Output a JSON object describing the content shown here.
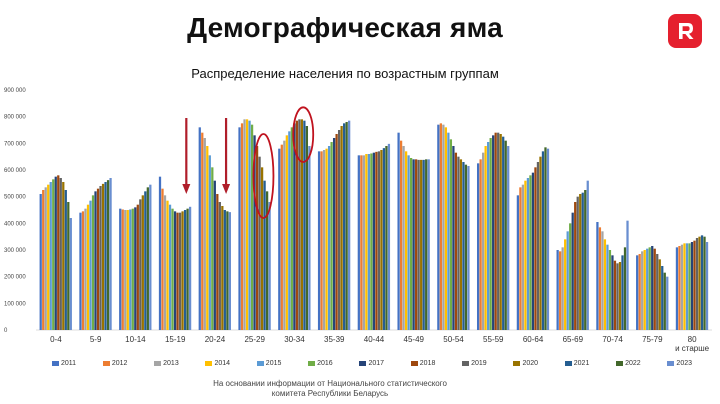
{
  "header": {
    "title": "Демографическая яма",
    "logo_color": "#e5202e"
  },
  "source_note": {
    "line1": "На основании информации от Национального статистического",
    "line2": "комитета Республики Беларусь"
  },
  "annotations": {
    "arrow_color": "#b01e2a",
    "ellipse_color": "#c0131f",
    "arrows_at": [
      "15-19",
      "20-24"
    ],
    "ellipses_at": [
      "25-29",
      "30-34"
    ]
  },
  "chart_data": {
    "type": "bar",
    "title": "Распределение населения по возрастным группам",
    "xlabel": "",
    "ylabel": "",
    "ylim": [
      0,
      900000
    ],
    "yticks": [
      "0",
      "100 000",
      "200 000",
      "300 000",
      "400 000",
      "500 000",
      "600 000",
      "700 000",
      "800 000",
      "900 000"
    ],
    "grid": false,
    "legend_position": "bottom",
    "categories": [
      "0-4",
      "5-9",
      "10-14",
      "15-19",
      "20-24",
      "25-29",
      "30-34",
      "35-39",
      "40-44",
      "45-49",
      "50-54",
      "55-59",
      "60-64",
      "65-69",
      "70-74",
      "75-79",
      "80 и старше"
    ],
    "series": [
      {
        "name": "2011",
        "color": "#4472c4",
        "values": [
          510000,
          440000,
          455000,
          575000,
          760000,
          760000,
          680000,
          670000,
          655000,
          740000,
          770000,
          625000,
          505000,
          300000,
          405000,
          280000,
          310000
        ]
      },
      {
        "name": "2012",
        "color": "#ed7d31",
        "values": [
          525000,
          445000,
          452000,
          530000,
          740000,
          775000,
          695000,
          670000,
          655000,
          710000,
          775000,
          640000,
          535000,
          295000,
          385000,
          285000,
          315000
        ]
      },
      {
        "name": "2013",
        "color": "#a5a5a5",
        "values": [
          535000,
          455000,
          450000,
          505000,
          720000,
          790000,
          710000,
          675000,
          655000,
          690000,
          770000,
          665000,
          545000,
          310000,
          370000,
          295000,
          320000
        ]
      },
      {
        "name": "2014",
        "color": "#ffc000",
        "values": [
          545000,
          470000,
          450000,
          485000,
          690000,
          790000,
          730000,
          680000,
          660000,
          670000,
          760000,
          690000,
          560000,
          340000,
          340000,
          300000,
          325000
        ]
      },
      {
        "name": "2015",
        "color": "#5b9bd5",
        "values": [
          555000,
          485000,
          452000,
          470000,
          655000,
          785000,
          745000,
          690000,
          660000,
          655000,
          740000,
          705000,
          570000,
          370000,
          320000,
          305000,
          325000
        ]
      },
      {
        "name": "2016",
        "color": "#70ad47",
        "values": [
          565000,
          505000,
          455000,
          455000,
          610000,
          770000,
          760000,
          705000,
          662000,
          645000,
          715000,
          720000,
          580000,
          400000,
          300000,
          310000,
          325000
        ]
      },
      {
        "name": "2017",
        "color": "#264478",
        "values": [
          575000,
          520000,
          460000,
          445000,
          560000,
          730000,
          775000,
          720000,
          665000,
          640000,
          690000,
          730000,
          590000,
          440000,
          280000,
          315000,
          330000
        ]
      },
      {
        "name": "2018",
        "color": "#9e480e",
        "values": [
          580000,
          530000,
          470000,
          440000,
          510000,
          690000,
          785000,
          735000,
          668000,
          640000,
          665000,
          740000,
          610000,
          480000,
          260000,
          305000,
          335000
        ]
      },
      {
        "name": "2019",
        "color": "#636363",
        "values": [
          570000,
          540000,
          490000,
          440000,
          480000,
          650000,
          790000,
          750000,
          670000,
          638000,
          650000,
          740000,
          630000,
          500000,
          250000,
          285000,
          345000
        ]
      },
      {
        "name": "2020",
        "color": "#997300",
        "values": [
          555000,
          548000,
          505000,
          445000,
          465000,
          610000,
          790000,
          765000,
          675000,
          638000,
          640000,
          735000,
          650000,
          510000,
          255000,
          265000,
          350000
        ]
      },
      {
        "name": "2021",
        "color": "#255e91",
        "values": [
          525000,
          555000,
          520000,
          450000,
          450000,
          560000,
          785000,
          775000,
          682000,
          638000,
          630000,
          725000,
          670000,
          515000,
          280000,
          240000,
          355000
        ]
      },
      {
        "name": "2022",
        "color": "#43682b",
        "values": [
          480000,
          562000,
          535000,
          455000,
          445000,
          520000,
          765000,
          780000,
          690000,
          640000,
          620000,
          710000,
          685000,
          525000,
          310000,
          215000,
          350000
        ]
      },
      {
        "name": "2023",
        "color": "#698ed0",
        "values": [
          420000,
          570000,
          545000,
          462000,
          442000,
          480000,
          690000,
          785000,
          698000,
          640000,
          615000,
          690000,
          680000,
          560000,
          410000,
          200000,
          330000
        ]
      }
    ]
  }
}
